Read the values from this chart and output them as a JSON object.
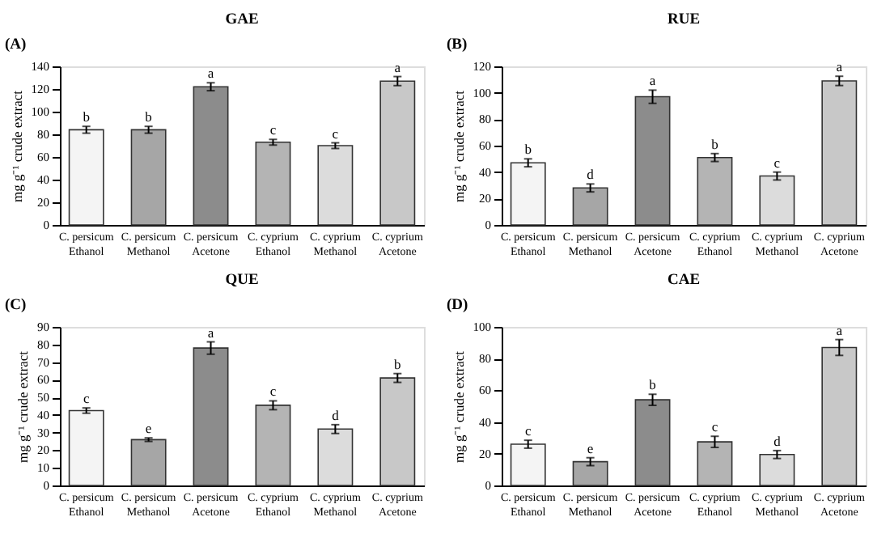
{
  "chart_data": [
    {
      "type": "bar",
      "title": "GAE",
      "ylabel": "mg g⁻¹ crude extract",
      "annotations": [
        "(A)",
        {
          "text": "b",
          "x": "C. persicum\nEthanol",
          "y": 87
        },
        {
          "text": "b",
          "x": "C. persicum\nMethanol",
          "y": 87
        },
        {
          "text": "a",
          "x": "C. persicum\nAcetone",
          "y": 125.5
        },
        {
          "text": "c",
          "x": "C. cyprium\nEthanol",
          "y": 75.5
        },
        {
          "text": "c",
          "x": "C. cyprium\nMethanol",
          "y": 72.5
        },
        {
          "text": "a",
          "x": "C. cyprium\nAcetone",
          "y": 131
        }
      ],
      "categories": [
        "C. persicum\nEthanol",
        "C. persicum\nMethanol",
        "C. persicum\nAcetone",
        "C. cyprium\nEthanol",
        "C. cyprium\nMethanol",
        "C. cyprium\nAcetone"
      ],
      "values": [
        84,
        84,
        122,
        73,
        70,
        127
      ],
      "errors": [
        3,
        3,
        3.5,
        2.5,
        2.5,
        4
      ],
      "colors": [
        "#f4f4f4",
        "#a6a6a6",
        "#8c8c8c",
        "#b4b4b4",
        "#dcdcdc",
        "#c8c8c8"
      ],
      "ylim": [
        0,
        140
      ],
      "yticks": [
        0,
        20,
        40,
        60,
        80,
        100,
        120,
        140
      ],
      "grid": false
    },
    {
      "type": "bar",
      "title": "RUE",
      "ylabel": "mg g⁻¹ crude extract",
      "annotations": [
        "(B)",
        {
          "text": "b",
          "x": "C. persicum\nEthanol",
          "y": 50
        },
        {
          "text": "d",
          "x": "C. persicum\nMethanol",
          "y": 31
        },
        {
          "text": "a",
          "x": "C. persicum\nAcetone",
          "y": 102
        },
        {
          "text": "b",
          "x": "C. cyprium\nEthanol",
          "y": 54
        },
        {
          "text": "c",
          "x": "C. cyprium\nMethanol",
          "y": 40
        },
        {
          "text": "a",
          "x": "C. cyprium\nAcetone",
          "y": 112.5
        }
      ],
      "categories": [
        "C. persicum\nEthanol",
        "C. persicum\nMethanol",
        "C. persicum\nAcetone",
        "C. cyprium\nEthanol",
        "C. cyprium\nMethanol",
        "C. cyprium\nAcetone"
      ],
      "values": [
        47,
        28,
        97,
        51,
        37,
        109
      ],
      "errors": [
        3,
        3,
        5,
        3,
        3,
        3.5
      ],
      "colors": [
        "#f4f4f4",
        "#a6a6a6",
        "#8c8c8c",
        "#b4b4b4",
        "#dcdcdc",
        "#c8c8c8"
      ],
      "ylim": [
        0,
        120
      ],
      "yticks": [
        0,
        20,
        40,
        60,
        80,
        100,
        120
      ],
      "grid": false
    },
    {
      "type": "bar",
      "title": "QUE",
      "ylabel": "mg g⁻¹ crude extract",
      "annotations": [
        "(C)",
        {
          "text": "c",
          "x": "C. persicum\nEthanol",
          "y": 44
        },
        {
          "text": "e",
          "x": "C. persicum\nMethanol",
          "y": 27
        },
        {
          "text": "a",
          "x": "C. persicum\nAcetone",
          "y": 81.5
        },
        {
          "text": "c",
          "x": "C. cyprium\nEthanol",
          "y": 48
        },
        {
          "text": "d",
          "x": "C. cyprium\nMethanol",
          "y": 34.5
        },
        {
          "text": "b",
          "x": "C. cyprium\nAcetone",
          "y": 63.5
        }
      ],
      "categories": [
        "C. persicum\nEthanol",
        "C. persicum\nMethanol",
        "C. persicum\nAcetone",
        "C. cyprium\nEthanol",
        "C. cyprium\nMethanol",
        "C. cyprium\nAcetone"
      ],
      "values": [
        42.5,
        26,
        78,
        45.5,
        32,
        61
      ],
      "errors": [
        1.5,
        1,
        3.5,
        2.5,
        2.5,
        2.5
      ],
      "colors": [
        "#f4f4f4",
        "#a6a6a6",
        "#8c8c8c",
        "#b4b4b4",
        "#dcdcdc",
        "#c8c8c8"
      ],
      "ylim": [
        0,
        90
      ],
      "yticks": [
        0,
        10,
        20,
        30,
        40,
        50,
        60,
        70,
        80,
        90
      ],
      "grid": false
    },
    {
      "type": "bar",
      "title": "CAE",
      "ylabel": "mg g⁻¹ crude extract",
      "annotations": [
        "(D)",
        {
          "text": "c",
          "x": "C. persicum\nEthanol",
          "y": 28.5
        },
        {
          "text": "e",
          "x": "C. persicum\nMethanol",
          "y": 17.5
        },
        {
          "text": "b",
          "x": "C. persicum\nAcetone",
          "y": 57.5
        },
        {
          "text": "c",
          "x": "C. cyprium\nEthanol",
          "y": 31
        },
        {
          "text": "d",
          "x": "C. cyprium\nMethanol",
          "y": 22
        },
        {
          "text": "a",
          "x": "C. cyprium\nAcetone",
          "y": 92
        }
      ],
      "categories": [
        "C. persicum\nEthanol",
        "C. persicum\nMethanol",
        "C. persicum\nAcetone",
        "C. cyprium\nEthanol",
        "C. cyprium\nMethanol",
        "C. cyprium\nAcetone"
      ],
      "values": [
        26,
        15,
        54,
        27.5,
        19.5,
        87
      ],
      "errors": [
        2.5,
        2.5,
        3.5,
        3.5,
        2.5,
        5
      ],
      "colors": [
        "#f4f4f4",
        "#a6a6a6",
        "#8c8c8c",
        "#b4b4b4",
        "#dcdcdc",
        "#c8c8c8"
      ],
      "ylim": [
        0,
        100
      ],
      "yticks": [
        0,
        20,
        40,
        60,
        80,
        100
      ],
      "grid": false
    }
  ]
}
